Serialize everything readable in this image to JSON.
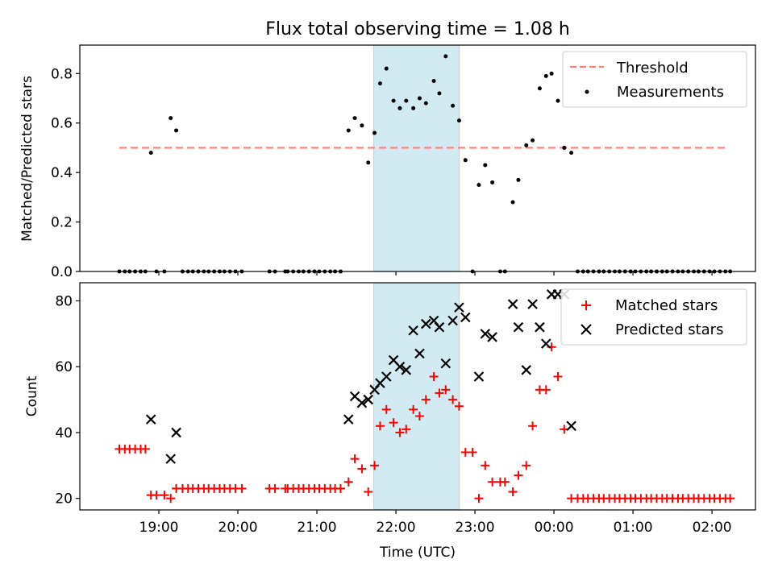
{
  "chart_data": [
    {
      "type": "scatter",
      "title": "Flux total observing time = 1.08 h",
      "xlabel": "",
      "ylabel": "Matched/Predicted stars",
      "x_axis": "time_utc_hours_since_midnight_day1",
      "xlim": [
        18.0,
        26.55
      ],
      "ylim": [
        0.0,
        0.915
      ],
      "yticks": [
        0.0,
        0.2,
        0.4,
        0.6,
        0.8
      ],
      "ytick_labels": [
        "0.0",
        "0.2",
        "0.4",
        "0.6",
        "0.8"
      ],
      "shaded_interval": [
        21.72,
        22.8
      ],
      "shade_color": "#add8e6",
      "legend": {
        "placement": "top-right",
        "entries": [
          "Threshold",
          "Measurements"
        ]
      },
      "threshold": {
        "name": "Threshold",
        "y": 0.5,
        "x_range": [
          18.5,
          26.2
        ],
        "color": "#ff7f7f",
        "style": "dashed"
      },
      "series": [
        {
          "name": "Measurements",
          "marker": "dot",
          "color": "#000000",
          "points": [
            [
              18.5,
              0
            ],
            [
              18.57,
              0
            ],
            [
              18.63,
              0
            ],
            [
              18.7,
              0
            ],
            [
              18.77,
              0
            ],
            [
              18.83,
              0
            ],
            [
              18.9,
              0.48
            ],
            [
              18.97,
              0
            ],
            [
              19.07,
              0
            ],
            [
              19.15,
              0.62
            ],
            [
              19.22,
              0.57
            ],
            [
              19.3,
              0
            ],
            [
              19.37,
              0
            ],
            [
              19.43,
              0
            ],
            [
              19.5,
              0
            ],
            [
              19.57,
              0
            ],
            [
              19.63,
              0
            ],
            [
              19.7,
              0
            ],
            [
              19.77,
              0
            ],
            [
              19.83,
              0
            ],
            [
              19.9,
              0
            ],
            [
              19.97,
              0
            ],
            [
              20.05,
              0
            ],
            [
              20.4,
              0
            ],
            [
              20.47,
              0
            ],
            [
              20.6,
              0
            ],
            [
              20.63,
              0
            ],
            [
              20.7,
              0
            ],
            [
              20.77,
              0
            ],
            [
              20.83,
              0
            ],
            [
              20.9,
              0
            ],
            [
              20.97,
              0
            ],
            [
              21.03,
              0
            ],
            [
              21.1,
              0
            ],
            [
              21.17,
              0
            ],
            [
              21.23,
              0
            ],
            [
              21.3,
              0
            ],
            [
              21.4,
              0.57
            ],
            [
              21.48,
              0.62
            ],
            [
              21.57,
              0.59
            ],
            [
              21.65,
              0.44
            ],
            [
              21.73,
              0.56
            ],
            [
              21.8,
              0.76
            ],
            [
              21.88,
              0.82
            ],
            [
              21.97,
              0.69
            ],
            [
              22.05,
              0.66
            ],
            [
              22.13,
              0.69
            ],
            [
              22.22,
              0.66
            ],
            [
              22.3,
              0.7
            ],
            [
              22.38,
              0.68
            ],
            [
              22.48,
              0.77
            ],
            [
              22.55,
              0.72
            ],
            [
              22.63,
              0.87
            ],
            [
              22.72,
              0.67
            ],
            [
              22.8,
              0.61
            ],
            [
              22.88,
              0.45
            ],
            [
              22.97,
              0
            ],
            [
              23.05,
              0.35
            ],
            [
              23.13,
              0.43
            ],
            [
              23.22,
              0.36
            ],
            [
              23.32,
              0
            ],
            [
              23.38,
              0
            ],
            [
              23.48,
              0.28
            ],
            [
              23.55,
              0.37
            ],
            [
              23.65,
              0.51
            ],
            [
              23.73,
              0.53
            ],
            [
              23.82,
              0.74
            ],
            [
              23.9,
              0.79
            ],
            [
              23.97,
              0.8
            ],
            [
              24.05,
              0.69
            ],
            [
              24.13,
              0.5
            ],
            [
              24.22,
              0.48
            ],
            [
              24.3,
              0
            ],
            [
              24.37,
              0
            ],
            [
              24.43,
              0
            ],
            [
              24.5,
              0
            ],
            [
              24.57,
              0
            ],
            [
              24.63,
              0
            ],
            [
              24.7,
              0
            ],
            [
              24.77,
              0
            ],
            [
              24.83,
              0
            ],
            [
              24.9,
              0
            ],
            [
              24.97,
              0
            ],
            [
              25.03,
              0
            ],
            [
              25.1,
              0
            ],
            [
              25.17,
              0
            ],
            [
              25.23,
              0
            ],
            [
              25.3,
              0
            ],
            [
              25.37,
              0
            ],
            [
              25.43,
              0
            ],
            [
              25.5,
              0
            ],
            [
              25.57,
              0
            ],
            [
              25.63,
              0
            ],
            [
              25.7,
              0
            ],
            [
              25.77,
              0
            ],
            [
              25.83,
              0
            ],
            [
              25.9,
              0
            ],
            [
              25.97,
              0
            ],
            [
              26.03,
              0
            ],
            [
              26.1,
              0
            ],
            [
              26.17,
              0
            ],
            [
              26.23,
              0
            ]
          ]
        }
      ]
    },
    {
      "type": "scatter",
      "title": "",
      "xlabel": "Time (UTC)",
      "ylabel": "Count",
      "x_axis": "time_utc_hours_since_midnight_day1",
      "xlim": [
        18.0,
        26.55
      ],
      "ylim": [
        16.5,
        85.5
      ],
      "yticks": [
        20,
        40,
        60,
        80
      ],
      "ytick_labels": [
        "20",
        "40",
        "60",
        "80"
      ],
      "xticks": [
        19,
        20,
        21,
        22,
        23,
        24,
        25,
        26
      ],
      "xtick_labels": [
        "19:00",
        "20:00",
        "21:00",
        "22:00",
        "23:00",
        "00:00",
        "01:00",
        "02:00"
      ],
      "shaded_interval": [
        21.72,
        22.8
      ],
      "shade_color": "#add8e6",
      "legend": {
        "placement": "top-right",
        "entries": [
          "Matched stars",
          "Predicted stars"
        ]
      },
      "series": [
        {
          "name": "Matched stars",
          "marker": "plus",
          "color": "#ff0000",
          "points": [
            [
              18.5,
              35
            ],
            [
              18.57,
              35
            ],
            [
              18.63,
              35
            ],
            [
              18.7,
              35
            ],
            [
              18.77,
              35
            ],
            [
              18.83,
              35
            ],
            [
              18.9,
              21
            ],
            [
              18.97,
              21
            ],
            [
              19.07,
              21
            ],
            [
              19.15,
              20
            ],
            [
              19.22,
              23
            ],
            [
              19.3,
              23
            ],
            [
              19.37,
              23
            ],
            [
              19.43,
              23
            ],
            [
              19.5,
              23
            ],
            [
              19.57,
              23
            ],
            [
              19.63,
              23
            ],
            [
              19.7,
              23
            ],
            [
              19.77,
              23
            ],
            [
              19.83,
              23
            ],
            [
              19.9,
              23
            ],
            [
              19.97,
              23
            ],
            [
              20.05,
              23
            ],
            [
              20.4,
              23
            ],
            [
              20.47,
              23
            ],
            [
              20.6,
              23
            ],
            [
              20.63,
              23
            ],
            [
              20.7,
              23
            ],
            [
              20.77,
              23
            ],
            [
              20.83,
              23
            ],
            [
              20.9,
              23
            ],
            [
              20.97,
              23
            ],
            [
              21.03,
              23
            ],
            [
              21.1,
              23
            ],
            [
              21.17,
              23
            ],
            [
              21.23,
              23
            ],
            [
              21.3,
              23
            ],
            [
              21.4,
              25
            ],
            [
              21.48,
              32
            ],
            [
              21.57,
              29
            ],
            [
              21.65,
              22
            ],
            [
              21.73,
              30
            ],
            [
              21.8,
              42
            ],
            [
              21.88,
              47
            ],
            [
              21.97,
              43
            ],
            [
              22.05,
              40
            ],
            [
              22.13,
              41
            ],
            [
              22.22,
              47
            ],
            [
              22.3,
              45
            ],
            [
              22.38,
              50
            ],
            [
              22.48,
              57
            ],
            [
              22.55,
              52
            ],
            [
              22.63,
              53
            ],
            [
              22.72,
              50
            ],
            [
              22.8,
              48
            ],
            [
              22.88,
              34
            ],
            [
              22.97,
              34
            ],
            [
              23.05,
              20
            ],
            [
              23.13,
              30
            ],
            [
              23.22,
              25
            ],
            [
              23.32,
              25
            ],
            [
              23.38,
              25
            ],
            [
              23.48,
              22
            ],
            [
              23.55,
              27
            ],
            [
              23.65,
              30
            ],
            [
              23.73,
              42
            ],
            [
              23.82,
              53
            ],
            [
              23.9,
              53
            ],
            [
              23.97,
              66
            ],
            [
              24.05,
              57
            ],
            [
              24.13,
              41
            ],
            [
              24.22,
              20
            ],
            [
              24.3,
              20
            ],
            [
              24.37,
              20
            ],
            [
              24.43,
              20
            ],
            [
              24.5,
              20
            ],
            [
              24.57,
              20
            ],
            [
              24.63,
              20
            ],
            [
              24.7,
              20
            ],
            [
              24.77,
              20
            ],
            [
              24.83,
              20
            ],
            [
              24.9,
              20
            ],
            [
              24.97,
              20
            ],
            [
              25.03,
              20
            ],
            [
              25.1,
              20
            ],
            [
              25.17,
              20
            ],
            [
              25.23,
              20
            ],
            [
              25.3,
              20
            ],
            [
              25.37,
              20
            ],
            [
              25.43,
              20
            ],
            [
              25.5,
              20
            ],
            [
              25.57,
              20
            ],
            [
              25.63,
              20
            ],
            [
              25.7,
              20
            ],
            [
              25.77,
              20
            ],
            [
              25.83,
              20
            ],
            [
              25.9,
              20
            ],
            [
              25.97,
              20
            ],
            [
              26.03,
              20
            ],
            [
              26.1,
              20
            ],
            [
              26.17,
              20
            ],
            [
              26.23,
              20
            ]
          ]
        },
        {
          "name": "Predicted stars",
          "marker": "x",
          "color": "#000000",
          "points": [
            [
              18.9,
              44
            ],
            [
              19.15,
              32
            ],
            [
              19.22,
              40
            ],
            [
              21.4,
              44
            ],
            [
              21.48,
              51
            ],
            [
              21.57,
              49
            ],
            [
              21.65,
              50
            ],
            [
              21.73,
              53
            ],
            [
              21.8,
              55
            ],
            [
              21.88,
              57
            ],
            [
              21.97,
              62
            ],
            [
              22.05,
              60
            ],
            [
              22.13,
              59
            ],
            [
              22.22,
              71
            ],
            [
              22.3,
              64
            ],
            [
              22.38,
              73
            ],
            [
              22.48,
              74
            ],
            [
              22.55,
              72
            ],
            [
              22.63,
              61
            ],
            [
              22.72,
              74
            ],
            [
              22.8,
              78
            ],
            [
              22.88,
              75
            ],
            [
              23.05,
              57
            ],
            [
              23.13,
              70
            ],
            [
              23.22,
              69
            ],
            [
              23.48,
              79
            ],
            [
              23.55,
              72
            ],
            [
              23.65,
              59
            ],
            [
              23.73,
              79
            ],
            [
              23.82,
              72
            ],
            [
              23.9,
              67
            ],
            [
              23.97,
              82
            ],
            [
              24.05,
              82
            ],
            [
              24.13,
              82
            ],
            [
              24.22,
              42
            ]
          ]
        }
      ]
    }
  ]
}
